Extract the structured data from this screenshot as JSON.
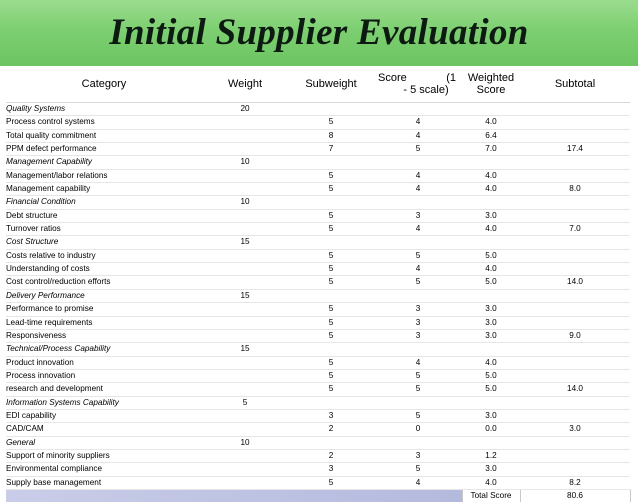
{
  "title": "Initial Supplier Evaluation",
  "headers": {
    "category": "Category",
    "weight": "Weight",
    "subweight": "Subweight",
    "score_l1": "Score",
    "score_l1b": "(1",
    "score_l2": "- 5 scale)",
    "weighted_l1": "Weighted",
    "weighted_l2": "Score",
    "subtotal": "Subtotal"
  },
  "groups": [
    {
      "name": "Quality Systems",
      "weight": "20",
      "items": [
        {
          "name": "Process control systems",
          "subweight": "5",
          "score": "4",
          "weighted": "4.0",
          "subtotal": ""
        },
        {
          "name": "Total quality commitment",
          "subweight": "8",
          "score": "4",
          "weighted": "6.4",
          "subtotal": ""
        },
        {
          "name": "PPM defect performance",
          "subweight": "7",
          "score": "5",
          "weighted": "7.0",
          "subtotal": "17.4"
        }
      ]
    },
    {
      "name": "Management Capability",
      "weight": "10",
      "items": [
        {
          "name": "Management/labor relations",
          "subweight": "5",
          "score": "4",
          "weighted": "4.0",
          "subtotal": ""
        },
        {
          "name": "Management capability",
          "subweight": "5",
          "score": "4",
          "weighted": "4.0",
          "subtotal": "8.0"
        }
      ]
    },
    {
      "name": "Financial Condition",
      "weight": "10",
      "items": [
        {
          "name": "Debt structure",
          "subweight": "5",
          "score": "3",
          "weighted": "3.0",
          "subtotal": ""
        },
        {
          "name": "Turnover ratios",
          "subweight": "5",
          "score": "4",
          "weighted": "4.0",
          "subtotal": "7.0"
        }
      ]
    },
    {
      "name": "Cost Structure",
      "weight": "15",
      "items": [
        {
          "name": "Costs relative to industry",
          "subweight": "5",
          "score": "5",
          "weighted": "5.0",
          "subtotal": ""
        },
        {
          "name": "Understanding of costs",
          "subweight": "5",
          "score": "4",
          "weighted": "4.0",
          "subtotal": ""
        },
        {
          "name": "Cost control/reduction efforts",
          "subweight": "5",
          "score": "5",
          "weighted": "5.0",
          "subtotal": "14.0"
        }
      ]
    },
    {
      "name": "Delivery Performance",
      "weight": "15",
      "items": [
        {
          "name": "Performance to promise",
          "subweight": "5",
          "score": "3",
          "weighted": "3.0",
          "subtotal": ""
        },
        {
          "name": "Lead-time requirements",
          "subweight": "5",
          "score": "3",
          "weighted": "3.0",
          "subtotal": ""
        },
        {
          "name": "Responsiveness",
          "subweight": "5",
          "score": "3",
          "weighted": "3.0",
          "subtotal": "9.0"
        }
      ]
    },
    {
      "name": "Technical/Process Capability",
      "weight": "15",
      "items": [
        {
          "name": "Product innovation",
          "subweight": "5",
          "score": "4",
          "weighted": "4.0",
          "subtotal": ""
        },
        {
          "name": "Process innovation",
          "subweight": "5",
          "score": "5",
          "weighted": "5.0",
          "subtotal": ""
        },
        {
          "name": "research and development",
          "subweight": "5",
          "score": "5",
          "weighted": "5.0",
          "subtotal": "14.0"
        }
      ]
    },
    {
      "name": "Information Systems Capability",
      "weight": "5",
      "items": [
        {
          "name": "EDI capability",
          "subweight": "3",
          "score": "5",
          "weighted": "3.0",
          "subtotal": ""
        },
        {
          "name": "CAD/CAM",
          "subweight": "2",
          "score": "0",
          "weighted": "0.0",
          "subtotal": "3.0"
        }
      ]
    },
    {
      "name": "General",
      "weight": "10",
      "items": [
        {
          "name": "Support of minority suppliers",
          "subweight": "2",
          "score": "3",
          "weighted": "1.2",
          "subtotal": ""
        },
        {
          "name": "Environmental compliance",
          "subweight": "3",
          "score": "5",
          "weighted": "3.0",
          "subtotal": ""
        },
        {
          "name": "Supply base management",
          "subweight": "5",
          "score": "4",
          "weighted": "4.0",
          "subtotal": "8.2"
        }
      ]
    }
  ],
  "total": {
    "label": "Total Score",
    "value": "80.6"
  },
  "colors": {
    "banner": "#7dcf71",
    "total_bar": "#b9bfe0"
  }
}
